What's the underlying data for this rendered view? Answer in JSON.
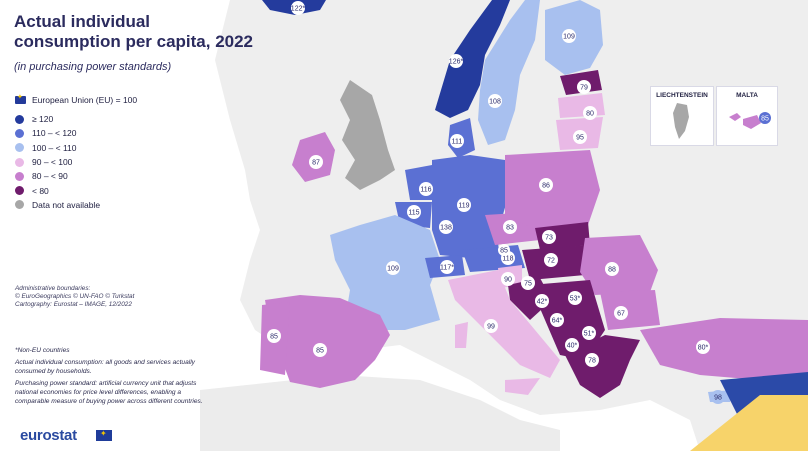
{
  "title": "Actual individual consumption per capita, 2022",
  "subtitle": "(in purchasing power standards)",
  "legend": {
    "heading": "European Union (EU) = 100",
    "items": [
      {
        "label": "≥ 120",
        "color": "#243b9d"
      },
      {
        "label": "110 – < 120",
        "color": "#5b70d3"
      },
      {
        "label": "100 – < 110",
        "color": "#a8c0ef"
      },
      {
        "label": "90 – < 100",
        "color": "#e9b9e6"
      },
      {
        "label": "80 – < 90",
        "color": "#c77fce"
      },
      {
        "label": "< 80",
        "color": "#6f1c6c"
      },
      {
        "label": "Data not available",
        "color": "#a7a7a7"
      }
    ]
  },
  "notes": {
    "boundaries": "Administrative boundaries:",
    "copyright": "© EuroGeographics © UN-FAO © Turkstat",
    "cartography": "Cartography: Eurostat – IMAGE, 12/2022"
  },
  "footnotes": {
    "non_eu": "*Non-EU countries",
    "aic": "Actual individual consumption: all goods and services actually consumed by households.",
    "pps": "Purchasing power standard: artificial currency unit that adjusts national economies for price level differences, enabling a comparable measure of buying power across different countries."
  },
  "insets": {
    "liechtenstein": "LIECHTENSTEIN",
    "malta": "MALTA"
  },
  "logo": "eurostat",
  "countries": [
    {
      "name": "Iceland",
      "value": "122*"
    },
    {
      "name": "Norway",
      "value": "126*"
    },
    {
      "name": "Sweden",
      "value": "108"
    },
    {
      "name": "Finland",
      "value": "109"
    },
    {
      "name": "Estonia",
      "value": "79"
    },
    {
      "name": "Latvia",
      "value": "80"
    },
    {
      "name": "Lithuania",
      "value": "95"
    },
    {
      "name": "Denmark",
      "value": "111"
    },
    {
      "name": "Ireland",
      "value": "87"
    },
    {
      "name": "Netherlands",
      "value": "116"
    },
    {
      "name": "Belgium",
      "value": "115"
    },
    {
      "name": "Germany",
      "value": "119"
    },
    {
      "name": "Luxembourg",
      "value": "138"
    },
    {
      "name": "Poland",
      "value": "86"
    },
    {
      "name": "Czechia",
      "value": "83"
    },
    {
      "name": "Slovakia",
      "value": "73"
    },
    {
      "name": "Hungary",
      "value": "72"
    },
    {
      "name": "Austria",
      "value": "118"
    },
    {
      "name": "Switzerland",
      "value": "117*"
    },
    {
      "name": "France",
      "value": "109"
    },
    {
      "name": "Romania",
      "value": "88"
    },
    {
      "name": "Slovenia",
      "value": "90"
    },
    {
      "name": "Croatia",
      "value": "75"
    },
    {
      "name": "Bosnia and Herzegovina",
      "value": "42*"
    },
    {
      "name": "Serbia",
      "value": "53*"
    },
    {
      "name": "Bulgaria",
      "value": "67"
    },
    {
      "name": "Montenegro",
      "value": "64*"
    },
    {
      "name": "North Macedonia",
      "value": "51*"
    },
    {
      "name": "Albania",
      "value": "40*"
    },
    {
      "name": "Greece",
      "value": "78"
    },
    {
      "name": "Italy",
      "value": "99"
    },
    {
      "name": "Portugal",
      "value": "85"
    },
    {
      "name": "Spain",
      "value": "85"
    },
    {
      "name": "Türkiye",
      "value": "80*"
    },
    {
      "name": "Cyprus",
      "value": "98"
    },
    {
      "name": "Malta",
      "value": "85"
    }
  ]
}
